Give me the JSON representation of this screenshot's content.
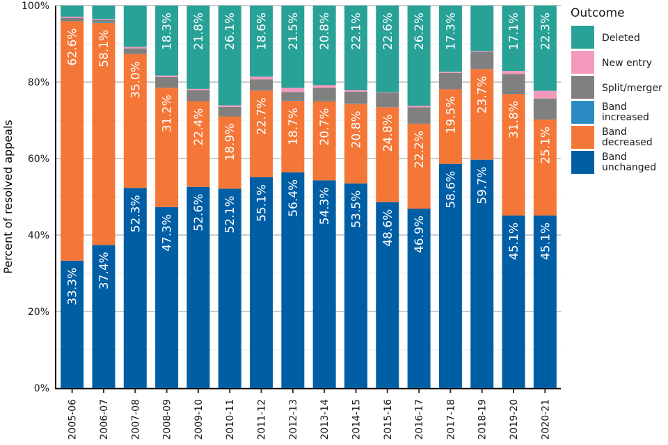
{
  "chart_data": {
    "type": "bar",
    "stacked": true,
    "percent": true,
    "title": "",
    "xlabel": "",
    "ylabel": "Percent of resolved appeals",
    "ylim": [
      0,
      100
    ],
    "yticks": [
      "0%",
      "20%",
      "40%",
      "60%",
      "80%",
      "100%"
    ],
    "grid": true,
    "legend_title": "Outcome",
    "legend_position": "right",
    "categories": [
      "2005-06",
      "2006-07",
      "2007-08",
      "2008-09",
      "2009-10",
      "2010-11",
      "2011-12",
      "2012-13",
      "2013-14",
      "2014-15",
      "2015-16",
      "2016-17",
      "2017-18",
      "2018-19",
      "2019-20",
      "2020-21"
    ],
    "series": [
      {
        "name": "Band unchanged",
        "legend_label": [
          "Band",
          "unchanged"
        ],
        "color": "#005EA5",
        "values": [
          33.3,
          37.4,
          52.3,
          47.3,
          52.6,
          52.1,
          55.1,
          56.4,
          54.3,
          53.5,
          48.6,
          46.9,
          58.6,
          59.7,
          45.1,
          45.1
        ],
        "labels": [
          "33.3%",
          "37.4%",
          "52.3%",
          "47.3%",
          "52.6%",
          "52.1%",
          "55.1%",
          "56.4%",
          "54.3%",
          "53.5%",
          "48.6%",
          "46.9%",
          "58.6%",
          "59.7%",
          "45.1%",
          "45.1%"
        ]
      },
      {
        "name": "Band decreased",
        "legend_label": [
          "Band",
          "decreased"
        ],
        "color": "#F47738",
        "values": [
          62.6,
          58.1,
          35.0,
          31.2,
          22.4,
          18.9,
          22.7,
          18.7,
          20.7,
          20.8,
          24.8,
          22.2,
          19.5,
          23.7,
          31.8,
          25.1
        ],
        "labels": [
          "62.6%",
          "58.1%",
          "35.0%",
          "31.2%",
          "22.4%",
          "18.9%",
          "22.7%",
          "18.7%",
          "20.7%",
          "20.8%",
          "24.8%",
          "22.2%",
          "19.5%",
          "23.7%",
          "31.8%",
          "25.1%"
        ]
      },
      {
        "name": "Band increased",
        "legend_label": [
          "Band",
          "increased"
        ],
        "color": "#2B8CC4",
        "values": [
          0,
          0.2,
          0,
          0,
          0,
          0,
          0.1,
          0.1,
          0.1,
          0.1,
          0,
          0,
          0,
          0,
          0.1,
          0
        ],
        "labels": [
          "",
          "",
          "",
          "",
          "",
          "",
          "",
          "",
          "",
          "",
          "",
          "",
          "",
          "",
          "",
          ""
        ]
      },
      {
        "name": "Split/merger",
        "legend_label": [
          "Split/merger"
        ],
        "color": "#808080",
        "values": [
          0.9,
          0.6,
          1.5,
          2.8,
          2.9,
          2.5,
          2.8,
          2.2,
          3.4,
          3.1,
          3.9,
          4.3,
          4.3,
          4.5,
          5.1,
          5.5
        ],
        "labels": [
          "",
          "",
          "",
          "",
          "",
          "",
          "",
          "",
          "",
          "",
          "",
          "",
          "",
          "",
          "",
          ""
        ]
      },
      {
        "name": "New entry",
        "legend_label": [
          "New entry"
        ],
        "color": "#F499BE",
        "values": [
          0.3,
          0.2,
          0.4,
          0.4,
          0.3,
          0.4,
          0.7,
          1.1,
          0.7,
          0.4,
          0.1,
          0.4,
          0.3,
          0.2,
          0.8,
          2.0
        ],
        "labels": [
          "",
          "",
          "",
          "",
          "",
          "",
          "",
          "",
          "",
          "",
          "",
          "",
          "",
          "",
          "",
          ""
        ]
      },
      {
        "name": "Deleted",
        "legend_label": [
          "Deleted"
        ],
        "color": "#28A197",
        "values": [
          2.9,
          3.5,
          10.8,
          18.3,
          21.8,
          26.1,
          18.6,
          21.5,
          20.8,
          22.1,
          22.6,
          26.2,
          17.3,
          11.9,
          17.1,
          22.3
        ],
        "labels": [
          "",
          "",
          "",
          "18.3%",
          "21.8%",
          "26.1%",
          "18.6%",
          "21.5%",
          "20.8%",
          "22.1%",
          "22.6%",
          "26.2%",
          "17.3%",
          "",
          "17.1%",
          "22.3%"
        ]
      }
    ],
    "legend_order": [
      "Deleted",
      "New entry",
      "Split/merger",
      "Band increased",
      "Band decreased",
      "Band unchanged"
    ]
  }
}
